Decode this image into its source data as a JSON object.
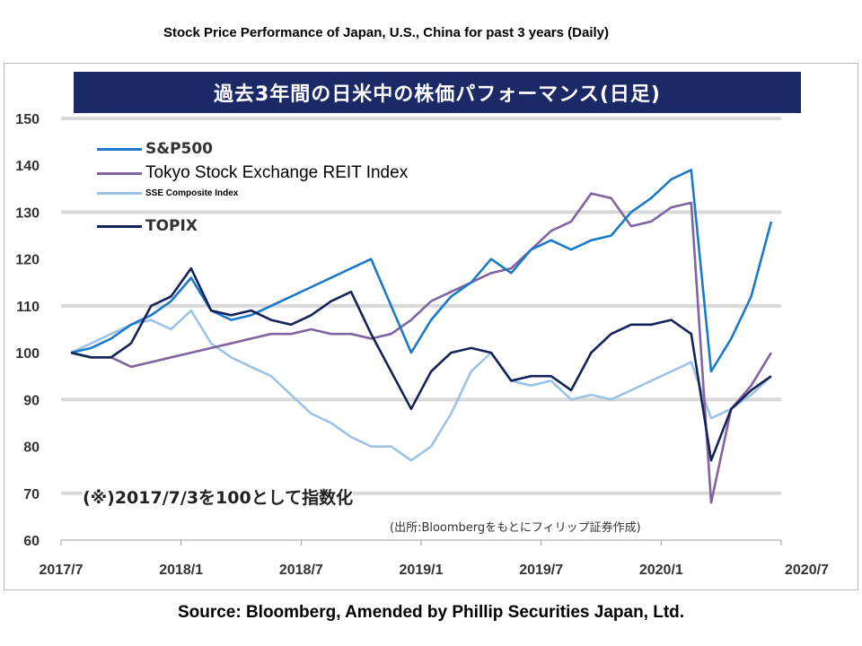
{
  "header": {
    "title": "Stock Price Performance of Japan, U.S., China for past 3 years (Daily)"
  },
  "footer": {
    "source": "Source: Bloomberg, Amended by Phillip Securities Japan, Ltd."
  },
  "annotations": {
    "banner": "過去3年間の日米中の株価パフォーマンス(日足)",
    "note": "(※)2017/7/3を100として指数化",
    "credit": "(出所:Bloombergをもとにフィリップ証券作成)"
  },
  "colors": {
    "sp500": "#1a7ac8",
    "reit": "#8063a1",
    "sse": "#9cc3e6",
    "topix": "#13235a",
    "banner": "#1b2a66",
    "grid": "#d9d9d9"
  },
  "chart_data": {
    "type": "line",
    "title": "過去3年間の日米中の株価パフォーマンス(日足)",
    "xlabel": "",
    "ylabel": "",
    "ylim": [
      60,
      150
    ],
    "yticks": [
      60,
      70,
      80,
      90,
      100,
      110,
      120,
      130,
      140,
      150
    ],
    "xlim": [
      "2017-07",
      "2020-07"
    ],
    "xticks": [
      "2017/7",
      "2018/1",
      "2018/7",
      "2019/1",
      "2019/7",
      "2020/1",
      "2020/7"
    ],
    "grid": true,
    "legend_position": "top-left",
    "x": [
      "2017-07",
      "2017-08",
      "2017-09",
      "2017-10",
      "2017-11",
      "2017-12",
      "2018-01",
      "2018-02",
      "2018-03",
      "2018-04",
      "2018-05",
      "2018-06",
      "2018-07",
      "2018-08",
      "2018-09",
      "2018-10",
      "2018-11",
      "2018-12",
      "2019-01",
      "2019-02",
      "2019-03",
      "2019-04",
      "2019-05",
      "2019-06",
      "2019-07",
      "2019-08",
      "2019-09",
      "2019-10",
      "2019-11",
      "2019-12",
      "2020-01",
      "2020-02",
      "2020-03",
      "2020-04",
      "2020-05",
      "2020-06"
    ],
    "series": [
      {
        "name": "S&P500",
        "values": [
          100,
          101,
          103,
          106,
          108,
          111,
          116,
          109,
          107,
          108,
          110,
          112,
          114,
          116,
          118,
          120,
          110,
          100,
          107,
          112,
          115,
          120,
          117,
          122,
          124,
          122,
          124,
          125,
          130,
          133,
          137,
          139,
          96,
          103,
          112,
          128
        ]
      },
      {
        "name": "Tokyo Stock Exchange REIT Index",
        "values": [
          100,
          99,
          99,
          97,
          98,
          99,
          100,
          101,
          102,
          103,
          104,
          104,
          105,
          104,
          104,
          103,
          104,
          107,
          111,
          113,
          115,
          117,
          118,
          122,
          126,
          128,
          134,
          133,
          127,
          128,
          131,
          132,
          68,
          88,
          93,
          100
        ]
      },
      {
        "name": "SSE Composite Index",
        "values": [
          100,
          102,
          104,
          106,
          107,
          105,
          109,
          102,
          99,
          97,
          95,
          91,
          87,
          85,
          82,
          80,
          80,
          77,
          80,
          87,
          96,
          100,
          94,
          93,
          94,
          90,
          91,
          90,
          92,
          94,
          96,
          98,
          86,
          88,
          91,
          95
        ]
      },
      {
        "name": "TOPIX",
        "values": [
          100,
          99,
          99,
          102,
          110,
          112,
          118,
          109,
          108,
          109,
          107,
          106,
          108,
          111,
          113,
          104,
          96,
          88,
          96,
          100,
          101,
          100,
          94,
          95,
          95,
          92,
          100,
          104,
          106,
          106,
          107,
          104,
          77,
          88,
          92,
          95
        ]
      }
    ]
  }
}
